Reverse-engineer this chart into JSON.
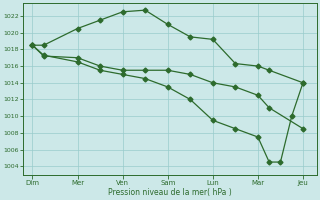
{
  "background_color": "#cce8e8",
  "grid_color": "#99cccc",
  "line_color": "#2d6b2d",
  "xlabel": "Pression niveau de la mer( hPa )",
  "ylim": [
    1003,
    1023.5
  ],
  "yticks": [
    1004,
    1006,
    1008,
    1010,
    1012,
    1014,
    1016,
    1018,
    1020,
    1022
  ],
  "xtick_labels": [
    "Dim",
    "Mer",
    "Ven",
    "Sam",
    "Lun",
    "Mar",
    "Jeu"
  ],
  "xtick_positions": [
    0,
    1,
    2,
    3,
    4,
    5,
    6
  ],
  "line1_x": [
    0,
    0.25,
    1.0,
    1.5,
    2.0,
    2.5,
    3.0,
    3.5,
    4.0,
    4.5,
    5.0,
    5.25,
    6.0
  ],
  "line1_y": [
    1018.5,
    1018.5,
    1020.5,
    1021.5,
    1022.5,
    1022.7,
    1021.0,
    1019.5,
    1019.2,
    1016.3,
    1016.0,
    1015.5,
    1014.0
  ],
  "line2_x": [
    0,
    0.25,
    1.0,
    1.5,
    2.0,
    2.5,
    3.0,
    3.5,
    4.0,
    4.5,
    5.0,
    5.25,
    6.0
  ],
  "line2_y": [
    1018.5,
    1017.2,
    1017.0,
    1016.0,
    1015.5,
    1015.5,
    1015.5,
    1015.0,
    1014.0,
    1013.5,
    1012.5,
    1011.0,
    1008.5
  ],
  "line3_x": [
    0,
    0.25,
    1.0,
    1.5,
    2.0,
    2.5,
    3.0,
    3.5,
    4.0,
    4.5,
    5.0,
    5.25,
    5.5,
    5.75,
    6.0
  ],
  "line3_y": [
    1018.5,
    1017.3,
    1016.5,
    1015.5,
    1015.0,
    1014.5,
    1013.5,
    1012.0,
    1009.5,
    1008.5,
    1007.5,
    1004.5,
    1004.5,
    1010.0,
    1014.0
  ]
}
